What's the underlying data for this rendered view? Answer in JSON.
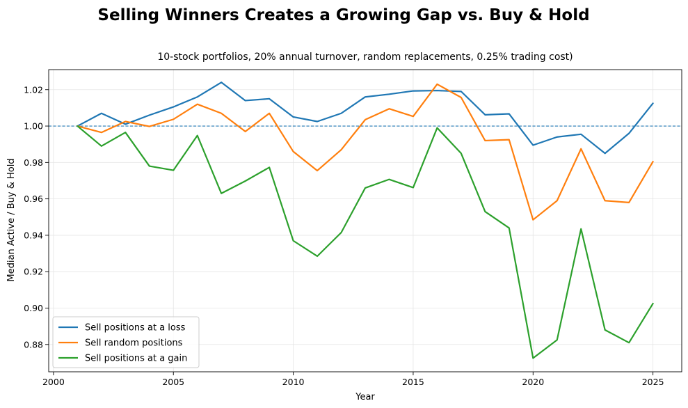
{
  "chart_data": {
    "type": "line",
    "title": "Selling Winners Creates a Growing Gap vs. Buy & Hold",
    "subtitle": "10-stock portfolios, 20% annual turnover, random replacements, 0.25% trading cost)",
    "xlabel": "Year",
    "ylabel": "Median Active / Buy & Hold",
    "xlim": [
      1999.8,
      2026.2
    ],
    "ylim": [
      0.865,
      1.031
    ],
    "xticks": [
      2000,
      2005,
      2010,
      2015,
      2020,
      2025
    ],
    "yticks": [
      0.88,
      0.9,
      0.92,
      0.94,
      0.96,
      0.98,
      1.0,
      1.02
    ],
    "ytick_labels": [
      "0.88",
      "0.90",
      "0.92",
      "0.94",
      "0.96",
      "0.98",
      "1.00",
      "1.02"
    ],
    "grid": true,
    "legend_position": "lower-left",
    "reference_line": {
      "y": 1.0,
      "style": "dashed",
      "color": "#1f77b4"
    },
    "x": [
      2001,
      2002,
      2003,
      2004,
      2005,
      2006,
      2007,
      2008,
      2009,
      2010,
      2011,
      2012,
      2013,
      2014,
      2015,
      2016,
      2017,
      2018,
      2019,
      2020,
      2021,
      2022,
      2023,
      2024,
      2025
    ],
    "series": [
      {
        "name": "Sell positions at a loss",
        "color": "#1f77b4",
        "values": [
          1.0,
          1.007,
          1.001,
          1.006,
          1.0105,
          1.016,
          1.024,
          1.014,
          1.015,
          1.005,
          1.0025,
          1.007,
          1.016,
          1.0175,
          1.0193,
          1.0195,
          1.019,
          1.0062,
          1.0067,
          0.9895,
          0.994,
          0.9955,
          0.985,
          0.996,
          1.0125
        ]
      },
      {
        "name": "Sell random positions",
        "color": "#ff7f0e",
        "values": [
          1.0,
          0.9965,
          1.0025,
          0.9998,
          1.0037,
          1.012,
          1.007,
          0.997,
          1.007,
          0.986,
          0.9755,
          0.987,
          1.0035,
          1.0095,
          1.0053,
          1.023,
          1.0157,
          0.992,
          0.9925,
          0.9485,
          0.959,
          0.9875,
          0.959,
          0.958,
          0.9805
        ]
      },
      {
        "name": "Sell positions at a gain",
        "color": "#2ca02c",
        "values": [
          1.0,
          0.989,
          0.9965,
          0.978,
          0.9757,
          0.9948,
          0.963,
          0.9698,
          0.9773,
          0.937,
          0.9285,
          0.9415,
          0.966,
          0.9707,
          0.9662,
          0.999,
          0.985,
          0.953,
          0.944,
          0.8725,
          0.8825,
          0.9435,
          0.888,
          0.881,
          0.9025
        ]
      }
    ]
  }
}
